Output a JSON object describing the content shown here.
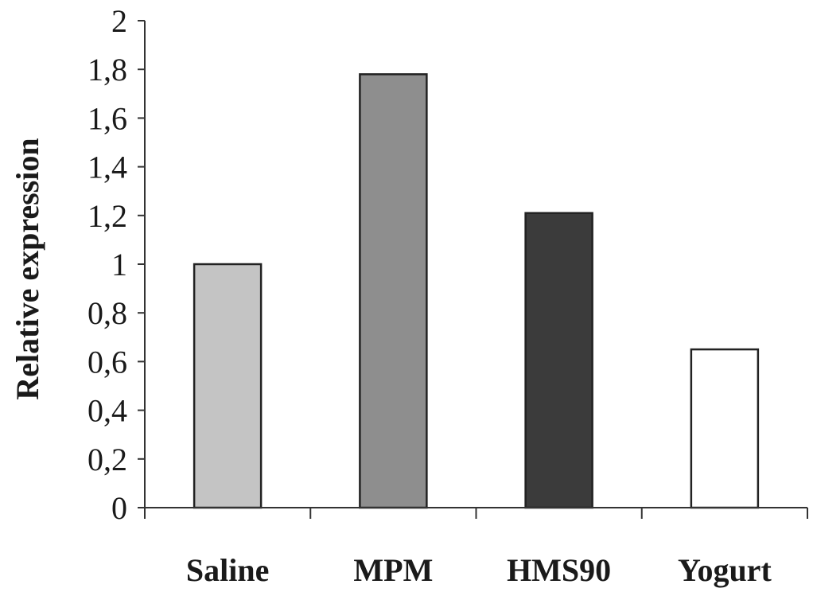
{
  "chart_data": {
    "type": "bar",
    "title": "",
    "xlabel": "",
    "ylabel": "Relative expression",
    "categories": [
      "Saline",
      "MPM",
      "HMS90",
      "Yogurt"
    ],
    "values": [
      1.0,
      1.78,
      1.21,
      0.65
    ],
    "bar_colors": [
      "#c4c4c4",
      "#8e8e8e",
      "#3b3b3b",
      "#ffffff"
    ],
    "ylim": [
      0,
      2
    ],
    "yticks": [
      0,
      0.2,
      0.4,
      0.6,
      0.8,
      1,
      1.2,
      1.4,
      1.6,
      1.8,
      2
    ],
    "ytick_labels": [
      "0",
      "0,2",
      "0,4",
      "0,6",
      "0,8",
      "1",
      "1,2",
      "1,4",
      "1,6",
      "1,8",
      "2"
    ],
    "grid": false,
    "legend": "none"
  }
}
